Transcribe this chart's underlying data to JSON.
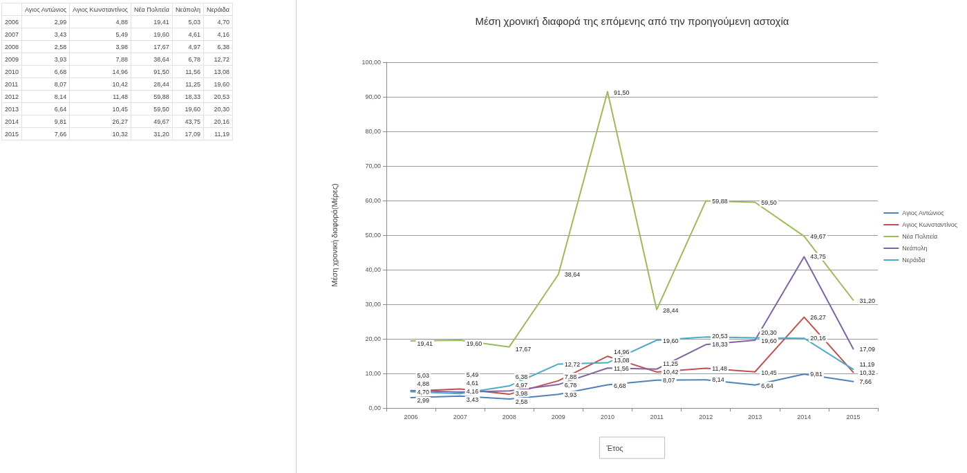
{
  "chart_data": {
    "type": "line",
    "title": "Μέση χρονική διαφορά της επόμενης από την προηγούμενη αστοχία",
    "xlabel": "Έτος",
    "ylabel": "Μέση χρονική διαφορά(Μέρες)",
    "categories": [
      "2006",
      "2007",
      "2008",
      "2009",
      "2010",
      "2011",
      "2012",
      "2013",
      "2014",
      "2015"
    ],
    "series": [
      {
        "name": "Αγιος Αντώνιος",
        "color": "#4f81bd",
        "values": [
          2.99,
          3.43,
          2.58,
          3.93,
          6.68,
          8.07,
          8.14,
          6.64,
          9.81,
          7.66
        ],
        "value_labels": [
          "2,99",
          "3,43",
          "2,58",
          "3,93",
          "6,68",
          "8,07",
          "8,14",
          "6,64",
          "9,81",
          "7,66"
        ]
      },
      {
        "name": "Αγιος Κωνσταντίνος",
        "color": "#c0504d",
        "values": [
          4.88,
          5.49,
          3.98,
          7.88,
          14.96,
          10.42,
          11.48,
          10.45,
          26.27,
          10.32
        ],
        "value_labels": [
          "4,88",
          "5,49",
          "3,98",
          "7,88",
          "14,96",
          "10,42",
          "11,48",
          "10,45",
          "26,27",
          "10,32"
        ]
      },
      {
        "name": "Νέα Πολιτεία",
        "color": "#9bbb59",
        "values": [
          19.41,
          19.6,
          17.67,
          38.64,
          91.5,
          28.44,
          59.88,
          59.5,
          49.67,
          31.2
        ],
        "value_labels": [
          "19,41",
          "19,60",
          "17,67",
          "38,64",
          "91,50",
          "28,44",
          "59,88",
          "59,50",
          "49,67",
          "31,20"
        ]
      },
      {
        "name": "Νεάπολη",
        "color": "#8064a2",
        "values": [
          5.03,
          4.61,
          4.97,
          6.78,
          11.56,
          11.25,
          18.33,
          19.6,
          43.75,
          17.09
        ],
        "value_labels": [
          "5,03",
          "4,61",
          "4,97",
          "6,78",
          "11,56",
          "11,25",
          "18,33",
          "19,60",
          "43,75",
          "17,09"
        ]
      },
      {
        "name": "Νεράιδα",
        "color": "#4bacc6",
        "values": [
          4.7,
          4.16,
          6.38,
          12.72,
          13.08,
          19.6,
          20.53,
          20.3,
          20.16,
          11.19
        ],
        "value_labels": [
          "4,70",
          "4,16",
          "6,38",
          "12,72",
          "13,08",
          "19,60",
          "20,53",
          "20,30",
          "20,16",
          "11,19"
        ]
      }
    ],
    "ylim": [
      0,
      100
    ],
    "yticks": [
      {
        "value": 0,
        "label": "0,00"
      },
      {
        "value": 10,
        "label": "10,00"
      },
      {
        "value": 20,
        "label": "20,00"
      },
      {
        "value": 30,
        "label": "30,00"
      },
      {
        "value": 40,
        "label": "40,00"
      },
      {
        "value": 50,
        "label": "50,00"
      },
      {
        "value": 60,
        "label": "60,00"
      },
      {
        "value": 70,
        "label": "70,00"
      },
      {
        "value": 80,
        "label": "80,00"
      },
      {
        "value": 90,
        "label": "90,00"
      },
      {
        "value": 100,
        "label": "100,00"
      }
    ],
    "grid": "y",
    "legend": "right",
    "marker": "none",
    "line_style": "solid"
  }
}
